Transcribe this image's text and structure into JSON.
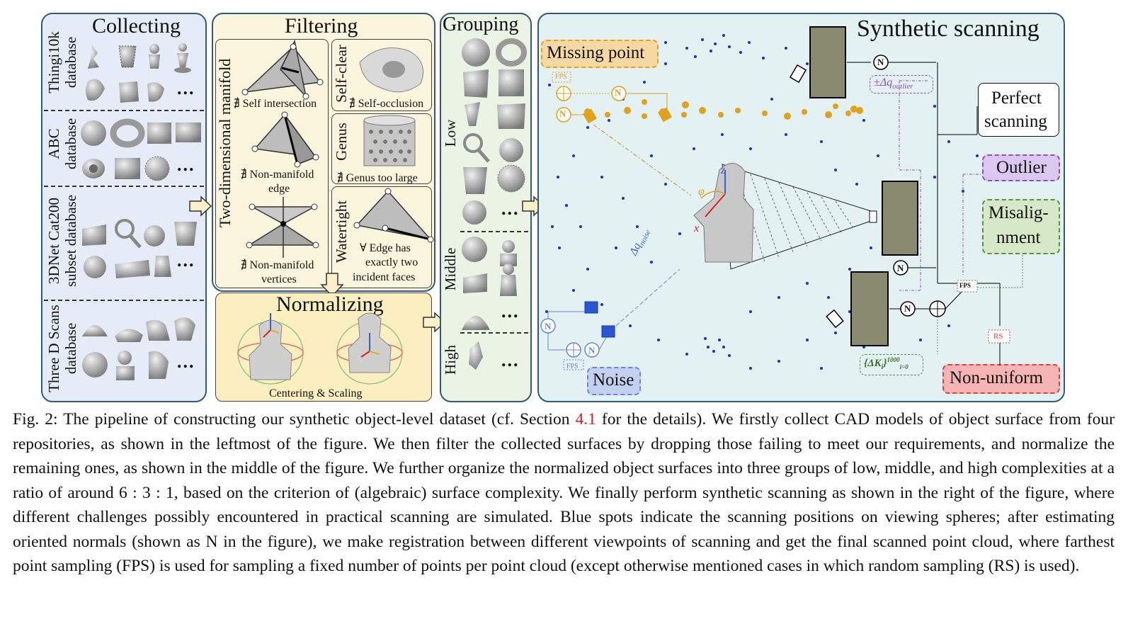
{
  "collecting": {
    "title": "Collecting",
    "rows": [
      {
        "label": "Thingi10k database",
        "line1": "Thingi10k",
        "line2": "database"
      },
      {
        "label": "ABC database",
        "line1": "ABC",
        "line2": "database"
      },
      {
        "label": "3DNet Cat200 subset database",
        "line1": "3DNet Cat200",
        "line2": "subset database"
      },
      {
        "label": "Three D Scans database",
        "line1": "Three D Scans",
        "line2": "database"
      }
    ],
    "ellipsis": "..."
  },
  "filtering": {
    "title": "Filtering",
    "left_group_label": "Two-dimensional manifold",
    "self_intersection": "∄ Self intersection",
    "non_manifold_edge_1": "∄ Non-manifold",
    "non_manifold_edge_2": "edge",
    "non_manifold_vertices_1": "∄ Non-manifold",
    "non_manifold_vertices_2": "vertices",
    "self_clear_label": "Self-clear",
    "self_occlusion": "∄ Self-occlusion",
    "genus_label": "Genus",
    "genus_too_large": "∄ Genus too large",
    "watertight_label": "Watertight",
    "edge_text_1": "∀ Edge has",
    "edge_text_2": "exactly two",
    "edge_text_3": "incident faces"
  },
  "normalizing": {
    "title": "Normalizing",
    "caption": "Centering & Scaling"
  },
  "grouping": {
    "title": "Grouping",
    "low": "Low",
    "middle": "Middle",
    "high": "High",
    "ellipsis": "..."
  },
  "scanning": {
    "title": "Synthetic scanning",
    "missing_point": "Missing point",
    "noise": "Noise",
    "perfect_1": "Perfect",
    "perfect_2": "scanning",
    "outlier": "Outlier",
    "misalignment_1": "Misalig-",
    "misalignment_2": "nment",
    "non_uniform": "Non-uniform",
    "fps": "FPS",
    "rs": "RS",
    "n": "N",
    "delta_outlier": "±Δq",
    "delta_outlier_sub": "outlier",
    "delta_noise": "Δq",
    "delta_noise_sub": "noise",
    "delta_k": "{ΔK",
    "delta_k_sub": "i",
    "delta_k_sup": "1000",
    "delta_k_range": "i=0",
    "delta_k_close": "}",
    "axis_z": "z",
    "axis_x": "x",
    "phi": "φ"
  },
  "caption": {
    "p1": "Fig. 2: The pipeline of constructing our synthetic object-level dataset (cf. Section ",
    "ref": "4.1",
    "p2": " for the details). We firstly collect CAD models of object surface from four repositories, as shown in the leftmost of the figure. We then filter the collected surfaces by dropping those failing to meet our requirements, and normalize the remaining ones, as shown in the middle of the figure. We further organize the normalized object surfaces into three groups of low, middle, and high complexities at a ratio of around 6 : 3 : 1, based on the criterion of (algebraic) surface complexity. We finally perform synthetic scanning as shown in the right of the figure, where different challenges possibly encountered in practical scanning are simulated. Blue spots indicate the scanning positions on viewing spheres; after estimating oriented normals (shown as N in the figure), we make registration between different viewpoints of scanning and get the final scanned point cloud, where farthest point sampling (FPS) is used for sampling a fixed number of points per point cloud (except otherwise mentioned cases in which random sampling (RS) is used)."
  },
  "colors": {
    "collect_bg": "#e6ecf7",
    "filter_bg": "#fbf5dd",
    "normalize_bg": "#fbeebf",
    "group_bg": "#eaf3e4",
    "scan_bg": "#e3f1f3",
    "orange": "#e0a21a",
    "blue": "#1a2fd0",
    "purple": "#8a4fc0",
    "green": "#5e8d45",
    "red": "#d64545"
  }
}
